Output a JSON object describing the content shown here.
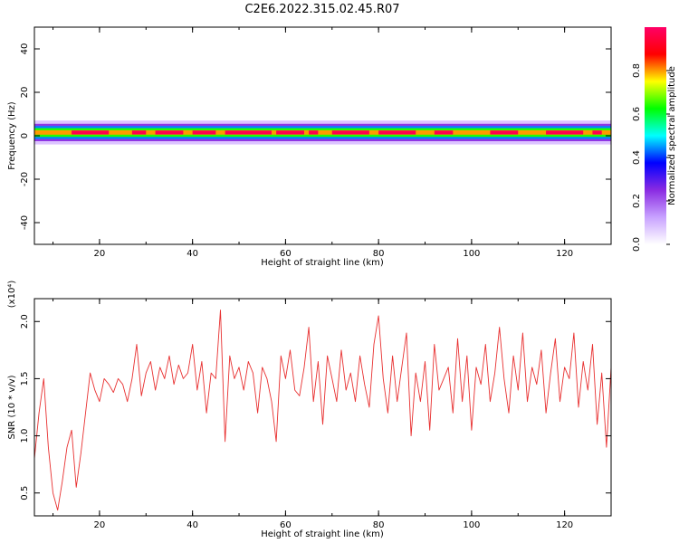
{
  "title": "C2E6.2022.315.02.45.R07",
  "chart_data": [
    {
      "type": "heatmap",
      "xlabel": "Height of straight line (km)",
      "ylabel": "Frequency (Hz)",
      "xlim": [
        6,
        130
      ],
      "ylim": [
        -50,
        50
      ],
      "xticks": [
        20,
        40,
        60,
        80,
        100,
        120
      ],
      "yticks": [
        -40,
        -20,
        0,
        20,
        40
      ],
      "colorbar": {
        "label": "Normalized spectral amplitude",
        "range": [
          0,
          1
        ],
        "ticks": [
          "0.0",
          "0.2",
          "0.4",
          "0.6",
          "0.8"
        ],
        "colormap": [
          "#ffffff",
          "#c8a2ff",
          "#8a2be2",
          "#0000ff",
          "#00ffff",
          "#00ff00",
          "#ffff00",
          "#ff0000",
          "#ff0066"
        ]
      },
      "band": {
        "center_freq_hz": 1.5,
        "halfwidth_hz": [
          1,
          2,
          3,
          4,
          5.5
        ],
        "halfwidth_level": [
          1.0,
          0.8,
          0.55,
          0.3,
          0.1
        ],
        "peak_segments_km": [
          [
            14,
            22
          ],
          [
            27,
            30
          ],
          [
            32,
            38
          ],
          [
            40,
            45
          ],
          [
            47,
            57
          ],
          [
            58,
            64
          ],
          [
            65,
            67
          ],
          [
            70,
            78
          ],
          [
            80,
            88
          ],
          [
            92,
            96
          ],
          [
            104,
            110
          ],
          [
            116,
            124
          ],
          [
            126,
            128
          ]
        ]
      }
    },
    {
      "type": "line",
      "xlabel": "Height of straight line (km)",
      "ylabel": "SNR (10 * v/v)",
      "yscale_label": "(x10⁴)",
      "xlim": [
        6,
        130
      ],
      "ylim": [
        0.3,
        2.2
      ],
      "xticks": [
        20,
        40,
        60,
        80,
        100,
        120
      ],
      "yticks": [
        0.5,
        1.0,
        1.5,
        2.0
      ],
      "ytick_labels": [
        "0.5",
        "1.0",
        "1.5",
        "2.0"
      ],
      "series": [
        {
          "color": "#e83030",
          "x": [
            6,
            7,
            8,
            9,
            10,
            11,
            12,
            13,
            14,
            15,
            16,
            17,
            18,
            19,
            20,
            21,
            22,
            23,
            24,
            25,
            26,
            27,
            28,
            29,
            30,
            31,
            32,
            33,
            34,
            35,
            36,
            37,
            38,
            39,
            40,
            41,
            42,
            43,
            44,
            45,
            46,
            47,
            48,
            49,
            50,
            51,
            52,
            53,
            54,
            55,
            56,
            57,
            58,
            59,
            60,
            61,
            62,
            63,
            64,
            65,
            66,
            67,
            68,
            69,
            70,
            71,
            72,
            73,
            74,
            75,
            76,
            77,
            78,
            79,
            80,
            81,
            82,
            83,
            84,
            85,
            86,
            87,
            88,
            89,
            90,
            91,
            92,
            93,
            94,
            95,
            96,
            97,
            98,
            99,
            100,
            101,
            102,
            103,
            104,
            105,
            106,
            107,
            108,
            109,
            110,
            111,
            112,
            113,
            114,
            115,
            116,
            117,
            118,
            119,
            120,
            121,
            122,
            123,
            124,
            125,
            126,
            127,
            128,
            129,
            130
          ],
          "y": [
            0.8,
            1.2,
            1.5,
            0.9,
            0.5,
            0.35,
            0.6,
            0.9,
            1.05,
            0.55,
            0.85,
            1.2,
            1.55,
            1.4,
            1.3,
            1.5,
            1.45,
            1.38,
            1.5,
            1.45,
            1.3,
            1.5,
            1.8,
            1.35,
            1.55,
            1.65,
            1.4,
            1.6,
            1.5,
            1.7,
            1.45,
            1.62,
            1.5,
            1.55,
            1.8,
            1.4,
            1.65,
            1.2,
            1.55,
            1.5,
            2.1,
            0.95,
            1.7,
            1.5,
            1.6,
            1.4,
            1.65,
            1.55,
            1.2,
            1.6,
            1.5,
            1.3,
            0.95,
            1.7,
            1.5,
            1.75,
            1.4,
            1.35,
            1.6,
            1.95,
            1.3,
            1.65,
            1.1,
            1.7,
            1.5,
            1.3,
            1.75,
            1.4,
            1.55,
            1.3,
            1.7,
            1.45,
            1.25,
            1.8,
            2.05,
            1.5,
            1.2,
            1.7,
            1.3,
            1.6,
            1.9,
            1.0,
            1.55,
            1.3,
            1.65,
            1.05,
            1.8,
            1.4,
            1.5,
            1.6,
            1.2,
            1.85,
            1.3,
            1.7,
            1.05,
            1.6,
            1.45,
            1.8,
            1.3,
            1.55,
            1.95,
            1.5,
            1.2,
            1.7,
            1.4,
            1.9,
            1.3,
            1.6,
            1.45,
            1.75,
            1.2,
            1.55,
            1.85,
            1.3,
            1.6,
            1.5,
            1.9,
            1.25,
            1.65,
            1.4,
            1.8,
            1.1,
            1.55,
            0.9,
            1.6
          ]
        }
      ]
    }
  ]
}
